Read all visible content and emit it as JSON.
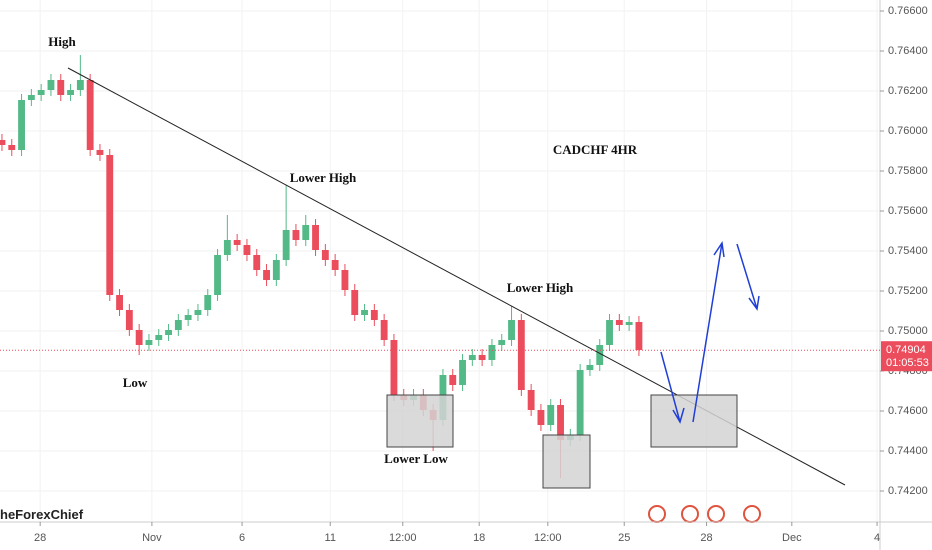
{
  "chart_data": {
    "type": "candlestick",
    "title": "CADCHF 4HR",
    "annotations": [
      "High",
      "Low",
      "Lower High",
      "Lower High",
      "Lower Low"
    ],
    "watermark": "heForexChief",
    "up_color": "#53b987",
    "down_color": "#eb4d5c",
    "xlim": [
      -0.2,
      89.6
    ],
    "xticks": [
      {
        "value": 3.9,
        "label": "28"
      },
      {
        "value": 15.3,
        "label": "Nov"
      },
      {
        "value": 24.5,
        "label": "6"
      },
      {
        "value": 33.5,
        "label": "11"
      },
      {
        "value": 40.9,
        "label": "12:00"
      },
      {
        "value": 48.7,
        "label": "18"
      },
      {
        "value": 55.7,
        "label": "12:00"
      },
      {
        "value": 63.5,
        "label": "25"
      },
      {
        "value": 71.9,
        "label": "28"
      },
      {
        "value": 80.6,
        "label": "Dec"
      },
      {
        "value": 89.3,
        "label": "4"
      }
    ],
    "ylim": [
      0.74045,
      0.76655
    ],
    "yticks": [
      {
        "value": 0.742,
        "label": "0.74200"
      },
      {
        "value": 0.744,
        "label": "0.74400"
      },
      {
        "value": 0.746,
        "label": "0.74600"
      },
      {
        "value": 0.748,
        "label": "0.74800"
      },
      {
        "value": 0.75,
        "label": "0.75000"
      },
      {
        "value": 0.752,
        "label": "0.75200"
      },
      {
        "value": 0.754,
        "label": "0.75400"
      },
      {
        "value": 0.756,
        "label": "0.75600"
      },
      {
        "value": 0.758,
        "label": "0.75800"
      },
      {
        "value": 0.76,
        "label": "0.76000"
      },
      {
        "value": 0.762,
        "label": "0.76200"
      },
      {
        "value": 0.764,
        "label": "0.76400"
      },
      {
        "value": 0.766,
        "label": "0.76600"
      }
    ],
    "last_price": 0.74904,
    "countdown": "01:05:53",
    "open": [
      0.75955,
      0.7593,
      0.75905,
      0.76155,
      0.7618,
      0.76205,
      0.76255,
      0.7618,
      0.76205,
      0.76255,
      0.75905,
      0.7588,
      0.7518,
      0.75105,
      0.75005,
      0.7493,
      0.74955,
      0.7498,
      0.75005,
      0.75055,
      0.7508,
      0.75105,
      0.7518,
      0.7538,
      0.75455,
      0.7543,
      0.7538,
      0.75305,
      0.75255,
      0.75355,
      0.75505,
      0.75455,
      0.7553,
      0.75405,
      0.75355,
      0.75305,
      0.75205,
      0.7508,
      0.75105,
      0.75055,
      0.74955,
      0.7468,
      0.74655,
      0.7468,
      0.74605,
      0.74555,
      0.7478,
      0.7473,
      0.74855,
      0.7488,
      0.74855,
      0.7493,
      0.74955,
      0.75055,
      0.74705,
      0.74605,
      0.7453,
      0.7463,
      0.74455,
      0.7448,
      0.74805,
      0.7483,
      0.7493,
      0.75055,
      0.7503,
      0.75045
    ],
    "high": [
      0.75985,
      0.7596,
      0.76185,
      0.7621,
      0.76235,
      0.76285,
      0.76285,
      0.76235,
      0.7638,
      0.76285,
      0.75935,
      0.7591,
      0.7521,
      0.75135,
      0.75035,
      0.74985,
      0.7501,
      0.75035,
      0.75085,
      0.7511,
      0.75135,
      0.7521,
      0.7541,
      0.7558,
      0.75485,
      0.7546,
      0.7541,
      0.75335,
      0.75385,
      0.7573,
      0.75535,
      0.7558,
      0.7556,
      0.75435,
      0.75385,
      0.75335,
      0.75235,
      0.75135,
      0.75135,
      0.75085,
      0.74985,
      0.7471,
      0.7471,
      0.7471,
      0.74635,
      0.7481,
      0.7481,
      0.74885,
      0.7491,
      0.7491,
      0.7496,
      0.74985,
      0.75125,
      0.75085,
      0.74735,
      0.74635,
      0.7466,
      0.7466,
      0.7451,
      0.74835,
      0.7486,
      0.7496,
      0.75085,
      0.75085,
      0.75075,
      0.75075
    ],
    "low": [
      0.759,
      0.75875,
      0.75875,
      0.76125,
      0.7615,
      0.76175,
      0.7615,
      0.7615,
      0.76175,
      0.75875,
      0.7585,
      0.7515,
      0.75075,
      0.74975,
      0.7488,
      0.749,
      0.74925,
      0.7495,
      0.74975,
      0.75025,
      0.7505,
      0.75075,
      0.7515,
      0.7535,
      0.754,
      0.7535,
      0.75275,
      0.75225,
      0.75225,
      0.75325,
      0.75425,
      0.75425,
      0.75375,
      0.75325,
      0.75275,
      0.75175,
      0.7505,
      0.7505,
      0.75025,
      0.74925,
      0.7465,
      0.74625,
      0.74625,
      0.74575,
      0.744,
      0.74525,
      0.747,
      0.747,
      0.74825,
      0.74825,
      0.74825,
      0.749,
      0.74925,
      0.74675,
      0.74575,
      0.745,
      0.745,
      0.74265,
      0.74425,
      0.7445,
      0.74775,
      0.748,
      0.749,
      0.75,
      0.75,
      0.74875
    ],
    "close": [
      0.7593,
      0.75905,
      0.76155,
      0.7618,
      0.76205,
      0.76255,
      0.7618,
      0.76205,
      0.76255,
      0.75905,
      0.7588,
      0.7518,
      0.75105,
      0.75005,
      0.7493,
      0.74955,
      0.7498,
      0.75005,
      0.75055,
      0.7508,
      0.75105,
      0.7518,
      0.7538,
      0.75455,
      0.7543,
      0.7538,
      0.75305,
      0.75255,
      0.75355,
      0.75505,
      0.75455,
      0.7553,
      0.75405,
      0.75355,
      0.75305,
      0.75205,
      0.7508,
      0.75105,
      0.75055,
      0.74955,
      0.7468,
      0.74655,
      0.7468,
      0.74605,
      0.74555,
      0.7478,
      0.7473,
      0.74855,
      0.7488,
      0.74855,
      0.7493,
      0.74955,
      0.75055,
      0.74705,
      0.74605,
      0.7453,
      0.7463,
      0.74455,
      0.7448,
      0.74805,
      0.7483,
      0.7493,
      0.75055,
      0.7503,
      0.75045,
      0.74905
    ]
  }
}
